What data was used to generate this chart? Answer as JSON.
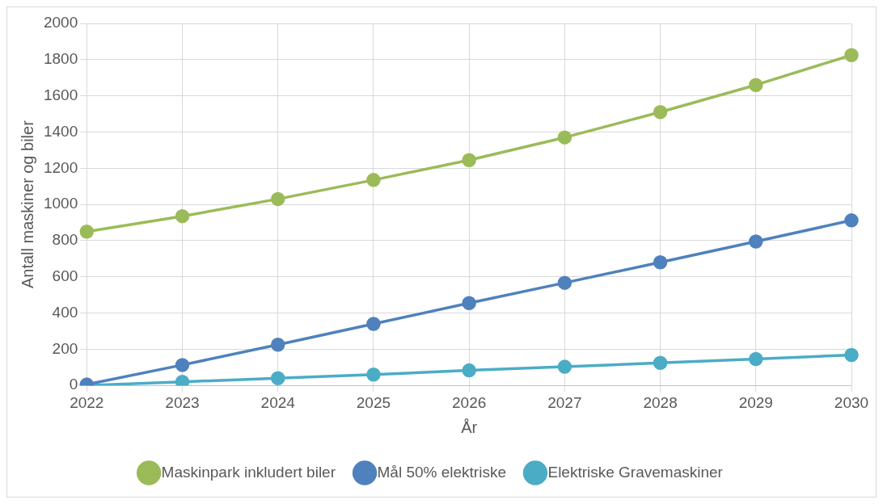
{
  "chart_data": {
    "type": "line",
    "xlabel": "År",
    "ylabel": "Antall maskiner og biler",
    "categories": [
      "2022",
      "2023",
      "2024",
      "2025",
      "2026",
      "2027",
      "2028",
      "2029",
      "2030"
    ],
    "series": [
      {
        "name": "Maskinpark inkludert biler",
        "color": "#9bbb59",
        "values": [
          850,
          935,
          1030,
          1135,
          1245,
          1370,
          1510,
          1660,
          1825
        ]
      },
      {
        "name": "Mål 50% elektriske",
        "color": "#4f81bd",
        "values": [
          5,
          113,
          225,
          340,
          455,
          567,
          680,
          795,
          912
        ]
      },
      {
        "name": "Elektriske Gravemaskiner",
        "color": "#4bacc6",
        "values": [
          0,
          20,
          40,
          60,
          83,
          103,
          125,
          146,
          168
        ]
      }
    ],
    "ylim": [
      0,
      2000
    ],
    "yticks": [
      0,
      200,
      400,
      600,
      800,
      1000,
      1200,
      1400,
      1600,
      1800,
      2000
    ],
    "grid": true,
    "legend": "bottom",
    "marker": "circle",
    "line_style": "solid"
  }
}
